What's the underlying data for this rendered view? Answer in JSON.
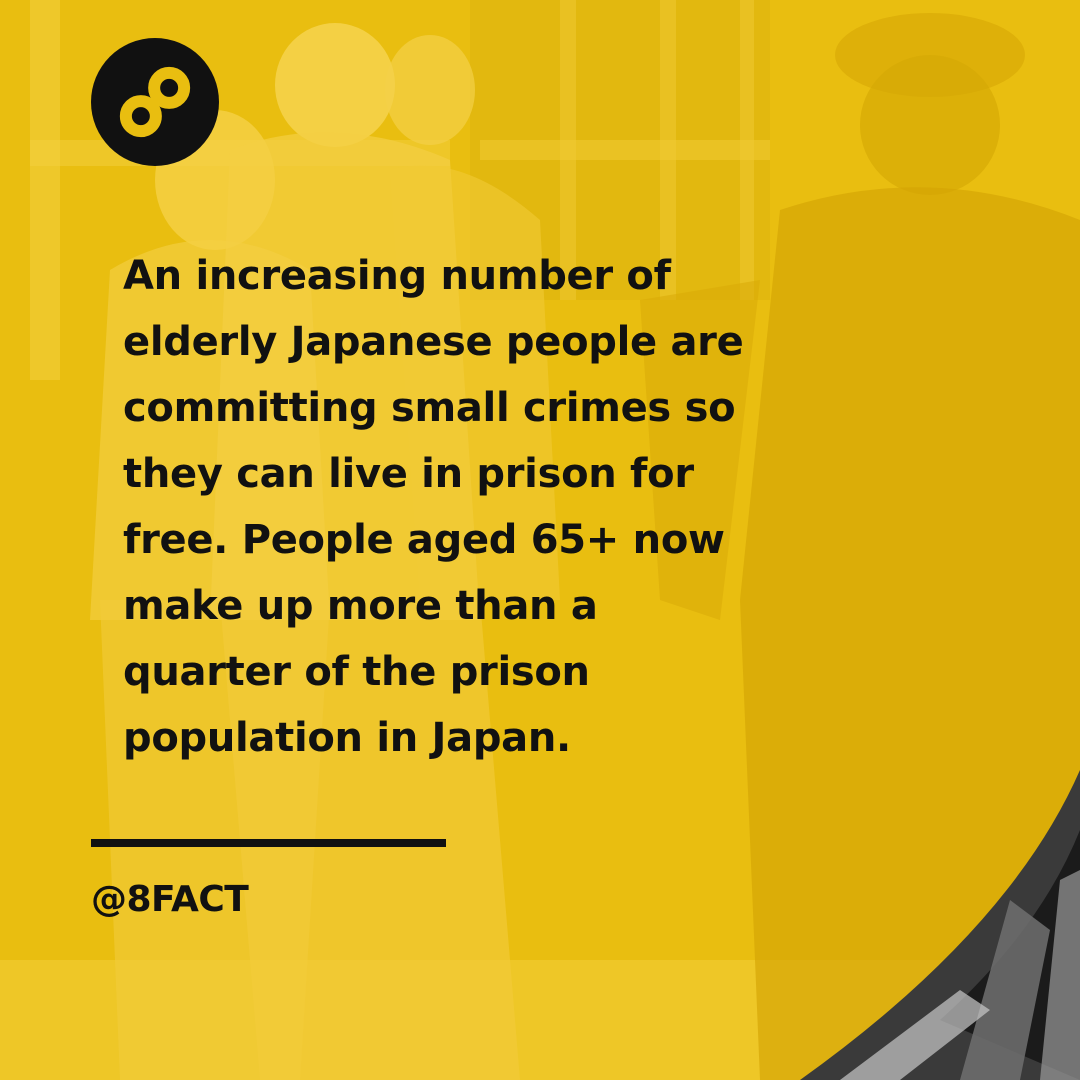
{
  "brand": {
    "logo_icon": "infinity-eight-icon",
    "handle": "@8FACT"
  },
  "fact": {
    "lines": [
      "An increasing number of",
      "elderly Japanese people are",
      "committing small crimes so",
      "they can live in prison for",
      "free. People aged 65+ now",
      "make up more than a",
      "quarter of the prison",
      "population in Japan."
    ]
  },
  "colors": {
    "background_yellow": "#e9be10",
    "text": "#111111",
    "badge": "#111111"
  }
}
